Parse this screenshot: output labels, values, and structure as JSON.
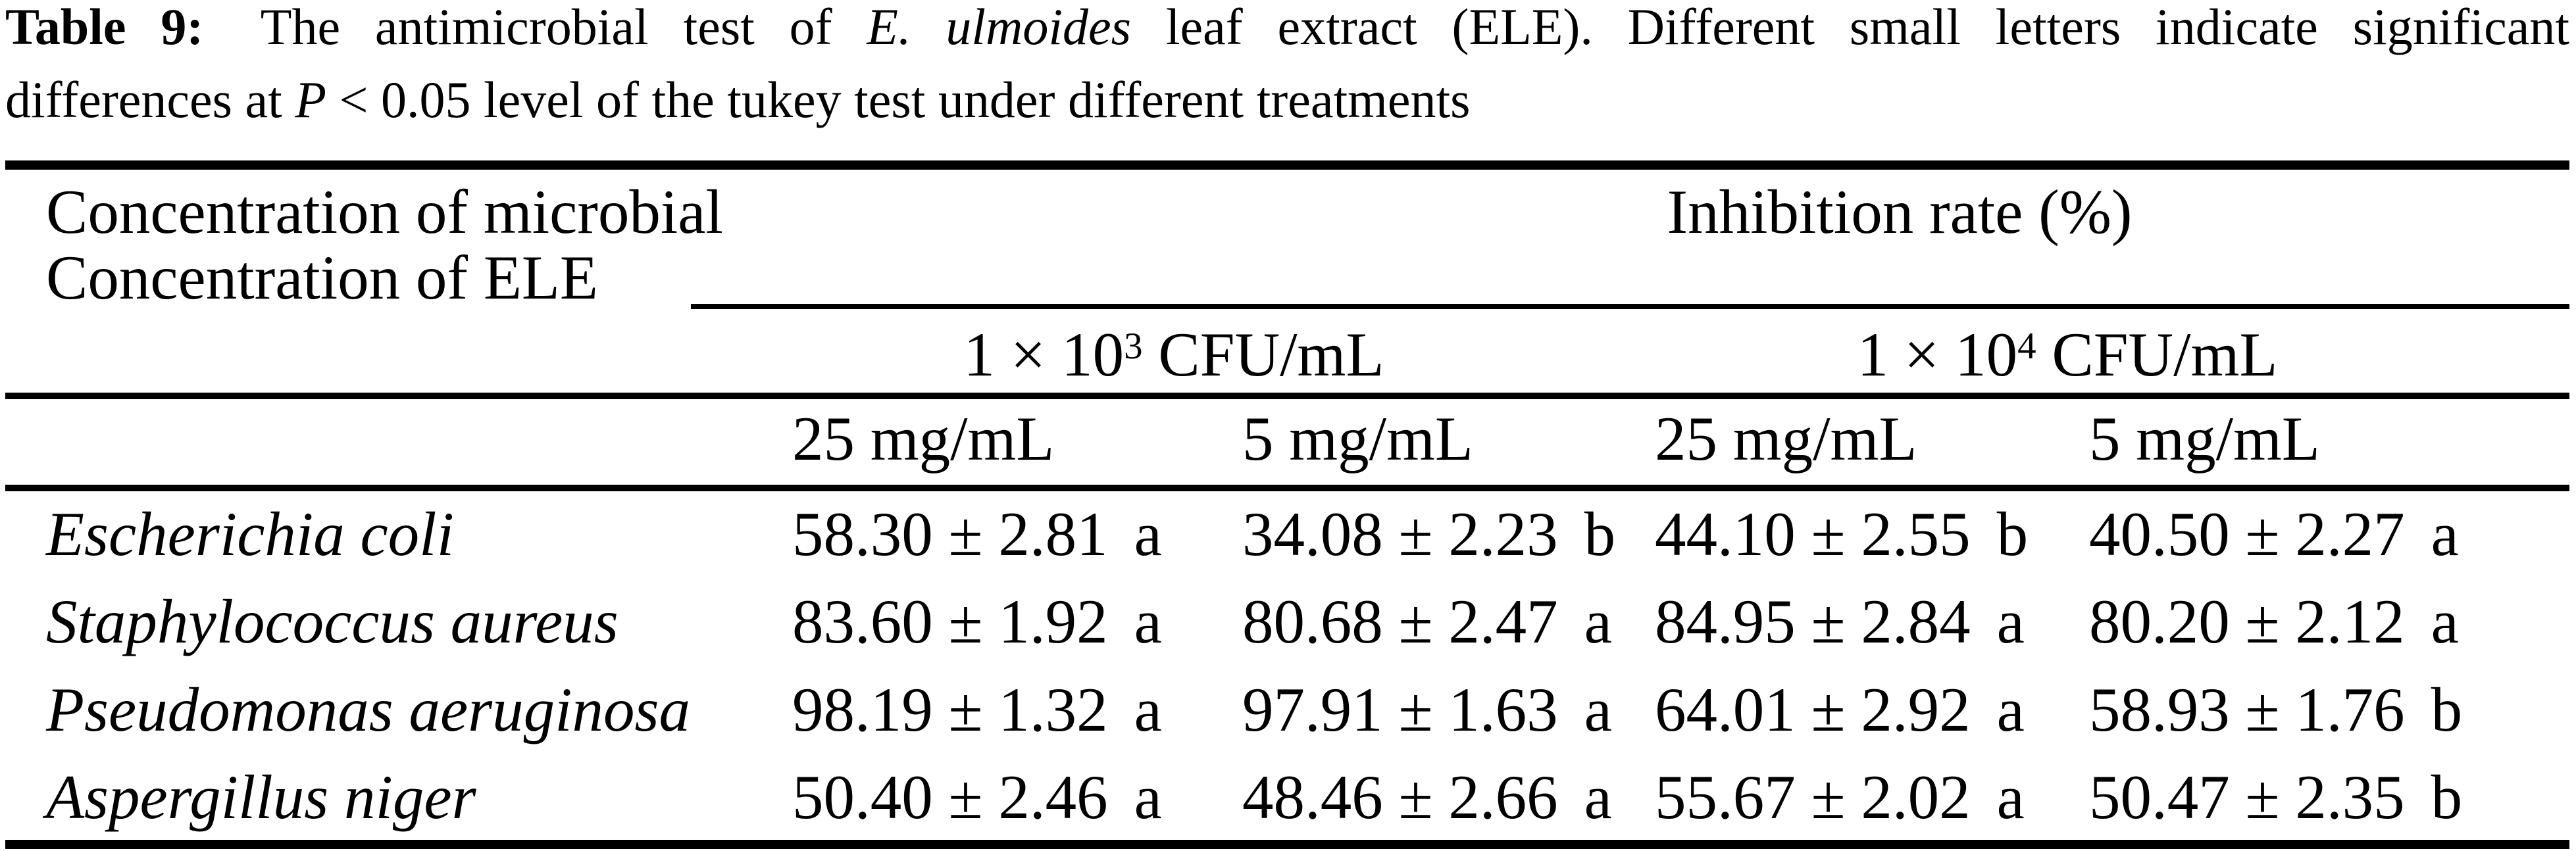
{
  "caption": {
    "label": "Table 9:",
    "seg1": " The antimicrobial test of ",
    "species_italic": "E. ulmoides",
    "seg2": " leaf extract (ELE). Different small letters indicate significant",
    "seg3": "differences at ",
    "p_italic": "P",
    "seg4": " < 0.05 level of the tukey test under different treatments"
  },
  "header": {
    "stub_line1": "Concentration of microbial",
    "stub_line2": "Concentration of ELE",
    "group_label": "Inhibition rate (%)",
    "cfu_groups": [
      {
        "base": "1 × 10",
        "exp": "3",
        "unit": " CFU/mL"
      },
      {
        "base": "1 × 10",
        "exp": "4",
        "unit": " CFU/mL"
      }
    ],
    "dose_cols": [
      "25 mg/mL",
      "5 mg/mL",
      "25 mg/mL",
      "5 mg/mL"
    ]
  },
  "rows": [
    {
      "species": "Escherichia coli",
      "values": [
        {
          "v": "58.30 ± 2.81",
          "letter": "a"
        },
        {
          "v": "34.08 ± 2.23",
          "letter": "b"
        },
        {
          "v": "44.10 ± 2.55",
          "letter": "b"
        },
        {
          "v": "40.50 ± 2.27",
          "letter": "a"
        }
      ]
    },
    {
      "species": "Staphylococcus aureus",
      "values": [
        {
          "v": "83.60 ± 1.92",
          "letter": "a"
        },
        {
          "v": "80.68 ± 2.47",
          "letter": "a"
        },
        {
          "v": "84.95 ± 2.84",
          "letter": "a"
        },
        {
          "v": "80.20 ± 2.12",
          "letter": "a"
        }
      ]
    },
    {
      "species": "Pseudomonas aeruginosa",
      "values": [
        {
          "v": "98.19 ± 1.32",
          "letter": "a"
        },
        {
          "v": "97.91 ± 1.63",
          "letter": "a"
        },
        {
          "v": "64.01 ± 2.92",
          "letter": "a"
        },
        {
          "v": "58.93 ± 1.76",
          "letter": "b"
        }
      ]
    },
    {
      "species": "Aspergillus niger",
      "values": [
        {
          "v": "50.40 ± 2.46",
          "letter": "a"
        },
        {
          "v": "48.46 ± 2.66",
          "letter": "a"
        },
        {
          "v": "55.67 ± 2.02",
          "letter": "a"
        },
        {
          "v": "50.47 ± 2.35",
          "letter": "b"
        }
      ]
    }
  ]
}
